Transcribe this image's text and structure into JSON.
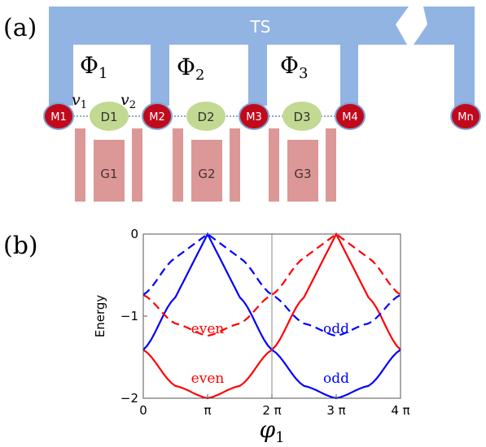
{
  "panel_a": {
    "label": "(a)",
    "bus_label": "TS",
    "flux_labels": [
      "Φ",
      "Φ",
      "Φ"
    ],
    "flux_subscripts": [
      "1",
      "2",
      "3"
    ],
    "coupling_labels": [
      "v",
      "v"
    ],
    "coupling_subscripts": [
      "1",
      "2"
    ],
    "majoranas": [
      "M1",
      "M2",
      "M3",
      "M4",
      "Mn"
    ],
    "dots": [
      "D1",
      "D2",
      "D3"
    ],
    "gates": [
      "G1",
      "G2",
      "G3"
    ],
    "colors": {
      "bus": "#92b4e2",
      "majorana_fill": "#c00a1c",
      "majorana_stroke": "#7fa3d8",
      "dot": "#c2d992",
      "gate": "#dc9797",
      "link": "#6a88b8"
    }
  },
  "panel_b": {
    "label": "(b)",
    "chart_data": {
      "type": "line",
      "xlabel": "φ",
      "xlabel_sub": "1",
      "ylabel": "Energy",
      "xlim": [
        0,
        4
      ],
      "xlim_units": "π",
      "ylim": [
        -2,
        0
      ],
      "xticks": [
        {
          "value": 0,
          "label": "0"
        },
        {
          "value": 1,
          "label": "π"
        },
        {
          "value": 2,
          "label": "2 π"
        },
        {
          "value": 3,
          "label": "3 π"
        },
        {
          "value": 4,
          "label": "4 π"
        }
      ],
      "yticks": [
        {
          "value": 0,
          "label": "0"
        },
        {
          "value": -1,
          "label": "−1"
        },
        {
          "value": -2,
          "label": "−2"
        }
      ],
      "vline_x": 2,
      "series": [
        {
          "color": "#ff0000",
          "dash": false,
          "x": [
            0,
            0.5,
            1,
            1.5,
            2,
            2.5,
            3,
            3.5,
            4
          ],
          "y": [
            -1.41,
            -1.85,
            -2.0,
            -1.85,
            -1.41,
            -0.77,
            0.0,
            -0.77,
            -1.41
          ]
        },
        {
          "color": "#0000ff",
          "dash": false,
          "x": [
            0,
            0.5,
            1,
            1.5,
            2,
            2.5,
            3,
            3.5,
            4
          ],
          "y": [
            -1.41,
            -0.77,
            0.0,
            -0.77,
            -1.41,
            -1.85,
            -2.0,
            -1.85,
            -1.41
          ]
        },
        {
          "color": "#ff0000",
          "dash": true,
          "x": [
            0,
            0.5,
            1,
            1.5,
            2,
            2.5,
            3,
            3.5,
            4
          ],
          "y": [
            -0.74,
            -1.09,
            -1.24,
            -1.09,
            -0.74,
            -0.29,
            0.0,
            -0.29,
            -0.74
          ]
        },
        {
          "color": "#0000ff",
          "dash": true,
          "x": [
            0,
            0.5,
            1,
            1.5,
            2,
            2.5,
            3,
            3.5,
            4
          ],
          "y": [
            -0.74,
            -0.29,
            0.0,
            -0.29,
            -0.74,
            -1.09,
            -1.24,
            -1.09,
            -0.74
          ]
        }
      ],
      "annotations": [
        {
          "text": "even",
          "x": 1,
          "y": -1.15,
          "color": "#ff0000"
        },
        {
          "text": "even",
          "x": 1,
          "y": -1.75,
          "color": "#ff0000"
        },
        {
          "text": "odd",
          "x": 3,
          "y": -1.15,
          "color": "#0000ff"
        },
        {
          "text": "odd",
          "x": 3,
          "y": -1.75,
          "color": "#0000ff"
        }
      ]
    }
  }
}
